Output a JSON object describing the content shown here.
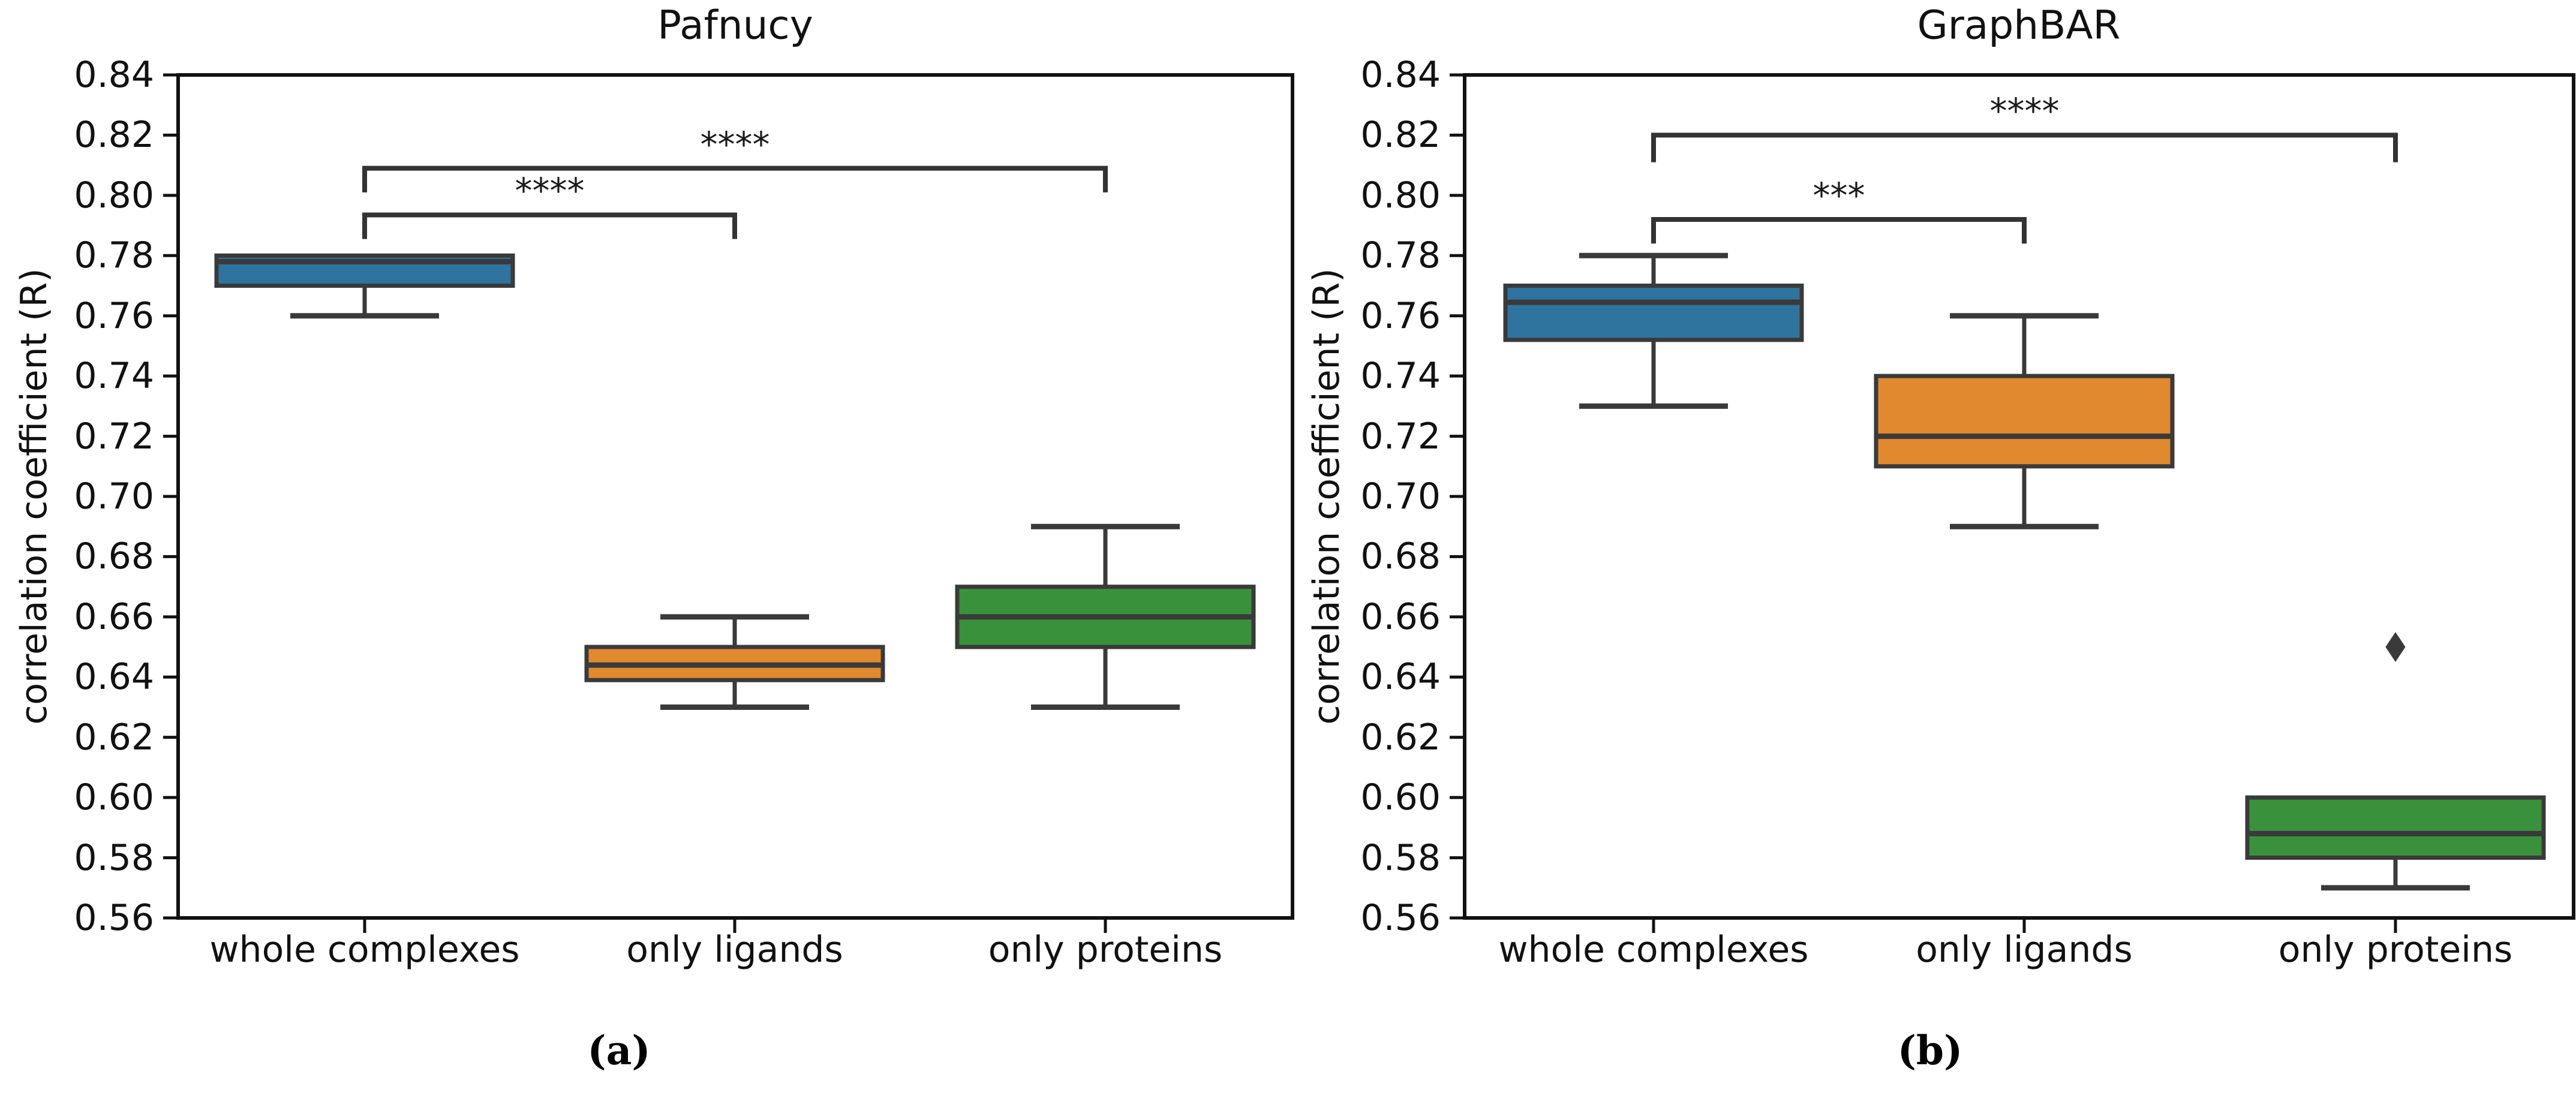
{
  "figure": {
    "background": "#ffffff",
    "colors": {
      "blue": "#2f739f",
      "orange": "#e1892f",
      "green": "#3a913c",
      "box_edge": "#3a3a3a",
      "whisker": "#3a3a3a",
      "bracket": "#333333",
      "spine": "#111111",
      "flier": "#3a3a3a"
    },
    "yticks": [
      "0.84",
      "0.82",
      "0.80",
      "0.78",
      "0.76",
      "0.74",
      "0.72",
      "0.70",
      "0.68",
      "0.66",
      "0.64",
      "0.62",
      "0.60",
      "0.58",
      "0.56"
    ]
  },
  "chart_data": [
    {
      "type": "box",
      "title": "Pafnucy",
      "panel_caption": "(a)",
      "ylabel": "correlation coefficient (R)",
      "ylim": [
        0.56,
        0.84
      ],
      "ytick_step": 0.02,
      "grid": false,
      "categories": [
        "whole complexes",
        "only ligands",
        "only proteins"
      ],
      "boxes": [
        {
          "category": "whole complexes",
          "color_key": "blue",
          "whislo": 0.76,
          "q1": 0.77,
          "med": 0.778,
          "q3": 0.78,
          "whishi": 0.78,
          "fliers": []
        },
        {
          "category": "only ligands",
          "color_key": "orange",
          "whislo": 0.63,
          "q1": 0.639,
          "med": 0.644,
          "q3": 0.65,
          "whishi": 0.66,
          "fliers": []
        },
        {
          "category": "only proteins",
          "color_key": "green",
          "whislo": 0.63,
          "q1": 0.65,
          "med": 0.66,
          "q3": 0.67,
          "whishi": 0.69,
          "fliers": []
        }
      ],
      "significance_brackets": [
        {
          "from": 0,
          "to": 1,
          "label": "****",
          "line_value": 0.7935,
          "drop_to_value": 0.7855
        },
        {
          "from": 0,
          "to": 2,
          "label": "****",
          "line_value": 0.809,
          "drop_to_value": 0.801
        }
      ]
    },
    {
      "type": "box",
      "title": "GraphBAR",
      "panel_caption": "(b)",
      "ylabel": "correlation coefficient (R)",
      "ylim": [
        0.56,
        0.84
      ],
      "ytick_step": 0.02,
      "grid": false,
      "categories": [
        "whole complexes",
        "only ligands",
        "only proteins"
      ],
      "boxes": [
        {
          "category": "whole complexes",
          "color_key": "blue",
          "whislo": 0.73,
          "q1": 0.752,
          "med": 0.7645,
          "q3": 0.77,
          "whishi": 0.78,
          "fliers": []
        },
        {
          "category": "only ligands",
          "color_key": "orange",
          "whislo": 0.69,
          "q1": 0.71,
          "med": 0.72,
          "q3": 0.74,
          "whishi": 0.76,
          "fliers": []
        },
        {
          "category": "only proteins",
          "color_key": "green",
          "whislo": 0.57,
          "q1": 0.58,
          "med": 0.588,
          "q3": 0.6,
          "whishi": 0.6,
          "fliers": [
            0.65
          ]
        }
      ],
      "significance_brackets": [
        {
          "from": 0,
          "to": 1,
          "label": "***",
          "line_value": 0.792,
          "drop_to_value": 0.784
        },
        {
          "from": 0,
          "to": 2,
          "label": "****",
          "line_value": 0.82,
          "drop_to_value": 0.811
        }
      ]
    }
  ]
}
